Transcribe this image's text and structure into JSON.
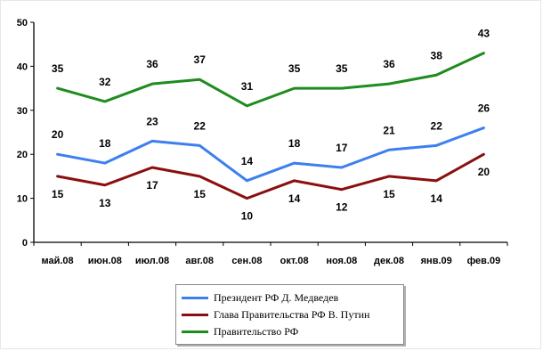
{
  "chart_data": {
    "type": "line",
    "categories": [
      "май.08",
      "июн.08",
      "июл.08",
      "авг.08",
      "сен.08",
      "окт.08",
      "ноя.08",
      "дек.08",
      "янв.09",
      "фев.09"
    ],
    "ylim": [
      0,
      50
    ],
    "yticks": [
      0,
      10,
      20,
      30,
      40,
      50
    ],
    "grid": false,
    "legend_position": "bottom-center",
    "series": [
      {
        "name": "Президент РФ Д. Медведев",
        "color": "#3d7ff0",
        "values": [
          20,
          18,
          23,
          22,
          14,
          18,
          17,
          21,
          22,
          26
        ]
      },
      {
        "name": "Глава Правительства РФ В. Путин",
        "color": "#8b0f0f",
        "values": [
          15,
          13,
          17,
          15,
          10,
          14,
          12,
          15,
          14,
          20
        ]
      },
      {
        "name": "Правительство РФ",
        "color": "#1e8c1e",
        "values": [
          35,
          32,
          36,
          37,
          31,
          35,
          35,
          36,
          38,
          43
        ]
      }
    ]
  }
}
